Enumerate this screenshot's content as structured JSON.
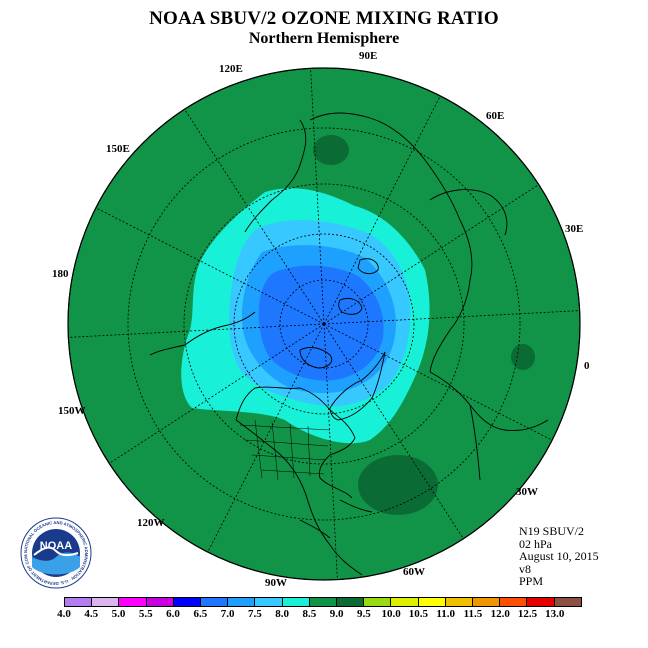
{
  "title": "NOAA SBUV/2 OZONE MIXING RATIO",
  "subtitle": "Northern Hemisphere",
  "longitude_labels": [
    "90E",
    "60E",
    "30E",
    "0",
    "30W",
    "60W",
    "90W",
    "120W",
    "150W",
    "180",
    "150E",
    "120E"
  ],
  "info": {
    "instrument": "N19 SBUV/2",
    "pressure": "02 hPa",
    "date": "August 10, 2015",
    "version": "v8",
    "units": "PPM"
  },
  "logo": {
    "text": "NOAA",
    "ring_text": "NATIONAL OCEANIC AND ATMOSPHERIC ADMINISTRATION · U.S. DEPARTMENT OF COMMERCE"
  },
  "colorbar": {
    "labels": [
      "4.0",
      "4.5",
      "5.0",
      "5.5",
      "6.0",
      "6.5",
      "7.0",
      "7.5",
      "8.0",
      "8.5",
      "9.0",
      "9.5",
      "10.0",
      "10.5",
      "11.0",
      "11.5",
      "12.0",
      "12.5",
      "13.0"
    ],
    "colors": [
      "#b57cf0",
      "#dcb4f0",
      "#ff00ff",
      "#c800e0",
      "#0000ff",
      "#1e78ff",
      "#1ea0ff",
      "#36c8ff",
      "#18f0d8",
      "#119447",
      "#0b6b34",
      "#96dc10",
      "#dcf000",
      "#ffff00",
      "#f0c000",
      "#f09600",
      "#ff5000",
      "#e60000",
      "#8c5040"
    ]
  },
  "colors": {
    "level_8_5": "#119447",
    "level_9_0": "#0b6b34",
    "level_8_0": "#18f0d8",
    "level_7_5": "#36c8ff",
    "level_7_0": "#1ea0ff",
    "level_6_5": "#1e78ff"
  }
}
